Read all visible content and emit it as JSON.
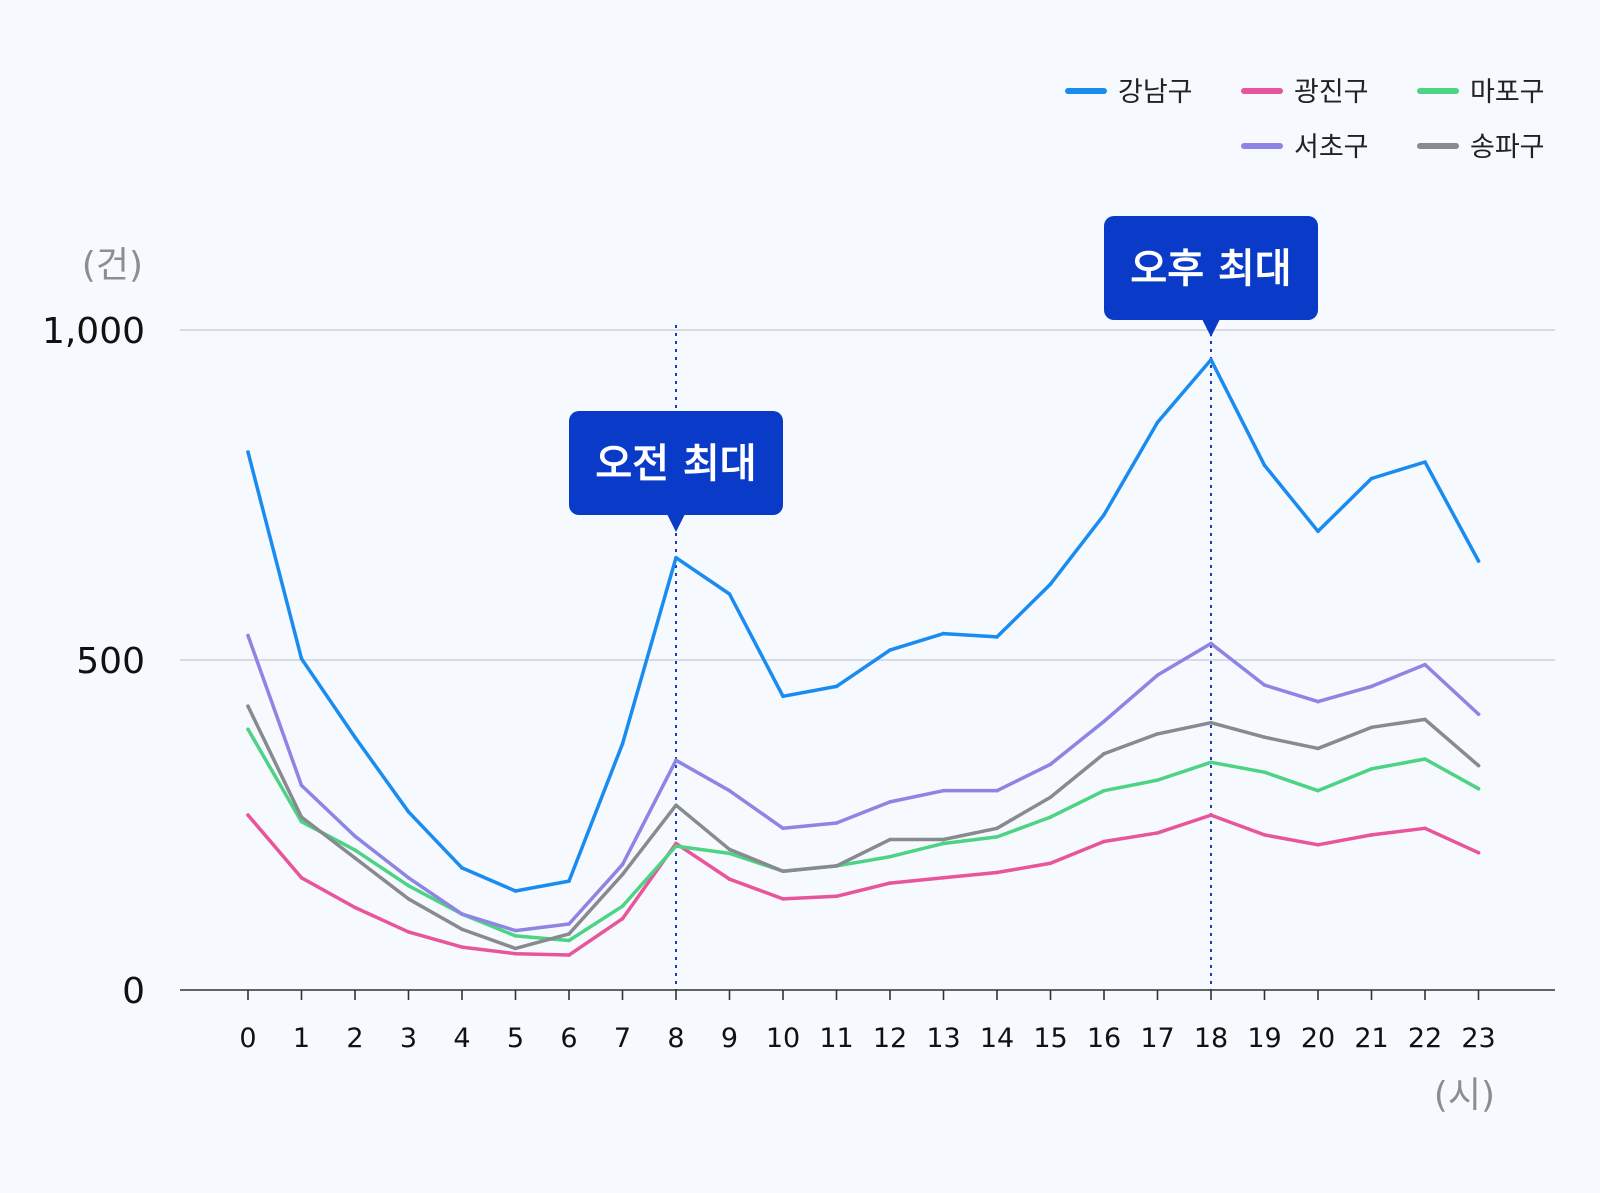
{
  "chart_data": {
    "type": "line",
    "x": [
      0,
      1,
      2,
      3,
      4,
      5,
      6,
      7,
      8,
      9,
      10,
      11,
      12,
      13,
      14,
      15,
      16,
      17,
      18,
      19,
      20,
      21,
      22,
      23
    ],
    "x_unit_label": "(시)",
    "y_unit_label": "(건)",
    "ylim": [
      0,
      1000
    ],
    "y_ticks": [
      0,
      500,
      1000
    ],
    "y_tick_labels": [
      "0",
      "500",
      "1,000"
    ],
    "grid": true,
    "legend_position": "top-right",
    "series": [
      {
        "name": "강남구",
        "color": "#1a8cf0",
        "values": [
          815,
          502,
          383,
          270,
          185,
          150,
          165,
          373,
          655,
          600,
          445,
          460,
          515,
          540,
          535,
          615,
          720,
          860,
          955,
          795,
          695,
          775,
          800,
          650
        ]
      },
      {
        "name": "광진구",
        "color": "#e8559a",
        "values": [
          265,
          170,
          125,
          88,
          65,
          55,
          53,
          108,
          222,
          168,
          138,
          142,
          162,
          170,
          178,
          192,
          225,
          238,
          265,
          235,
          220,
          235,
          245,
          208
        ]
      },
      {
        "name": "마포구",
        "color": "#4cd484",
        "values": [
          395,
          255,
          212,
          158,
          115,
          82,
          75,
          127,
          218,
          207,
          180,
          188,
          202,
          222,
          232,
          262,
          302,
          318,
          345,
          330,
          302,
          335,
          350,
          305
        ]
      },
      {
        "name": "서초구",
        "color": "#8e84e3",
        "values": [
          537,
          310,
          233,
          170,
          115,
          90,
          100,
          190,
          348,
          302,
          245,
          253,
          285,
          302,
          302,
          342,
          407,
          477,
          525,
          462,
          437,
          460,
          493,
          418
        ]
      },
      {
        "name": "송파구",
        "color": "#888a8f",
        "values": [
          430,
          262,
          200,
          138,
          92,
          63,
          85,
          175,
          280,
          213,
          180,
          188,
          228,
          228,
          245,
          292,
          358,
          388,
          405,
          383,
          366,
          398,
          410,
          340
        ]
      }
    ],
    "annotations": [
      {
        "x": 8,
        "label": "오전 최대"
      },
      {
        "x": 18,
        "label": "오후 최대"
      }
    ]
  },
  "colors": {
    "callout": "#0a3ac8",
    "marker_line": "#1e3fb0",
    "grid": "#c6cbd2",
    "axis": "#333333"
  }
}
